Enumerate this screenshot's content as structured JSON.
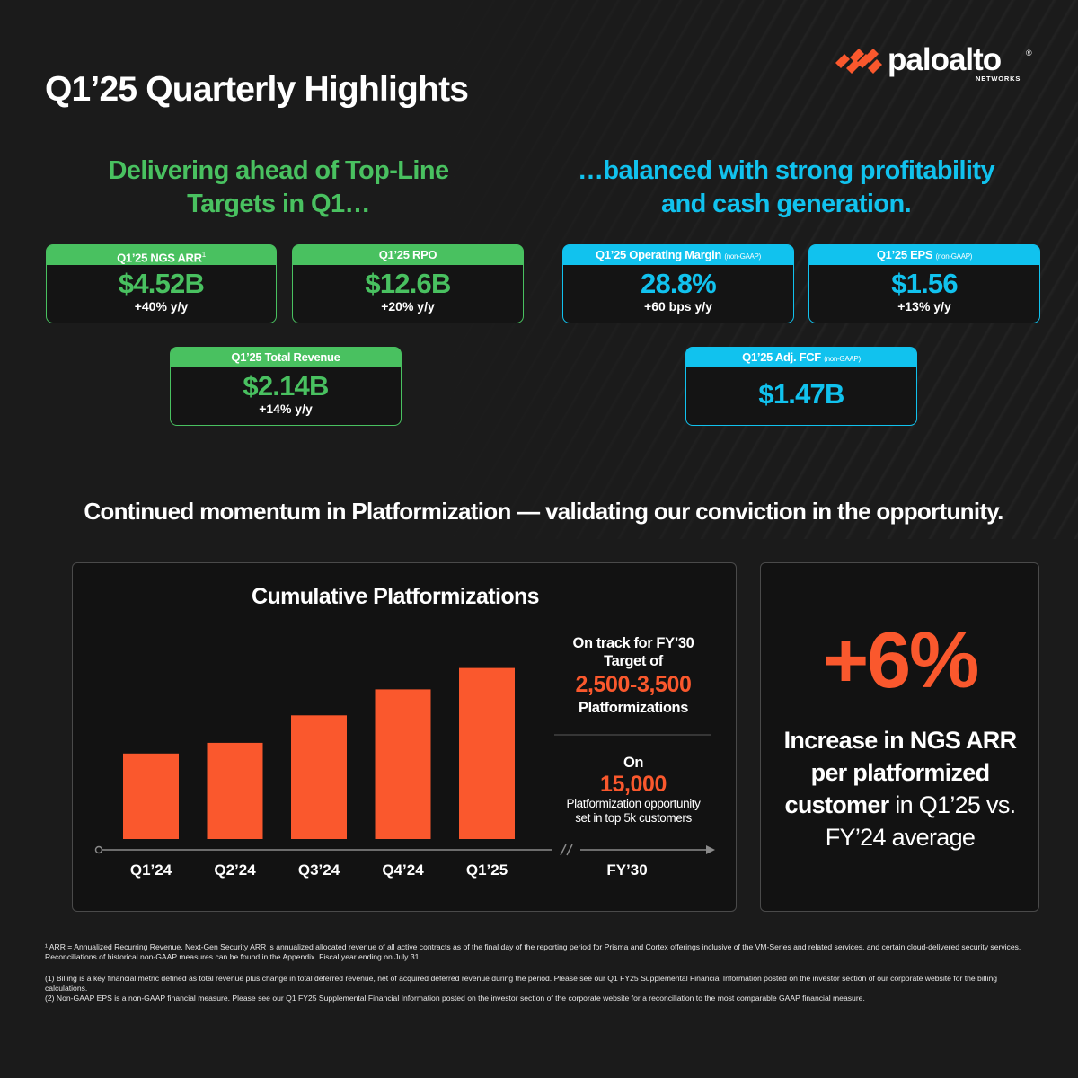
{
  "title": "Q1’25 Quarterly Highlights",
  "brand": {
    "word": "paloalto",
    "reg": "®",
    "sub": "NETWORKS",
    "color": "#fa582d"
  },
  "left_heading": "Delivering ahead of Top-Line Targets in Q1…",
  "right_heading": "…balanced with strong profitability and cash generation.",
  "cards": {
    "ngs_arr": {
      "label": "Q1’25 NGS ARR",
      "sup": "1",
      "value": "$4.52B",
      "change": "+40% y/y"
    },
    "rpo": {
      "label": "Q1’25 RPO",
      "value": "$12.6B",
      "change": "+20% y/y"
    },
    "revenue": {
      "label": "Q1’25 Total Revenue",
      "value": "$2.14B",
      "change": "+14% y/y"
    },
    "op_margin": {
      "label": "Q1’25 Operating Margin",
      "tag": "(non-GAAP)",
      "value": "28.8%",
      "change": "+60 bps y/y"
    },
    "eps": {
      "label": "Q1’25 EPS",
      "tag": "(non-GAAP)",
      "value": "$1.56",
      "change": "+13% y/y"
    },
    "fcf": {
      "label": "Q1’25 Adj. FCF",
      "tag": "(non-GAAP)",
      "value": "$1.47B"
    }
  },
  "colors": {
    "green": "#49c160",
    "blue": "#11c2ee",
    "orange": "#fa582d"
  },
  "subheading": "Continued momentum in Platformization — validating our conviction in the opportunity.",
  "chart_data": {
    "type": "bar",
    "title": "Cumulative Platformizations",
    "categories": [
      "Q1’24",
      "Q2’24",
      "Q3’24",
      "Q4’24",
      "Q1’25"
    ],
    "values": [
      0.56,
      0.63,
      0.81,
      0.98,
      1.12
    ],
    "value_scale": "relative (no axis values printed)",
    "extra_category": "FY’30",
    "color": "#fa582d",
    "grid": false
  },
  "target_note": {
    "line1": "On track for FY’30",
    "line2": "Target of",
    "range": "2,500-3,500",
    "line3": "Platformizations"
  },
  "opportunity_note": {
    "line1": "On",
    "value": "15,000",
    "line2": "Platformization opportunity",
    "line3": "set in top 5k customers"
  },
  "increase": {
    "value": "+6%",
    "bold1": "Increase in NGS ARR",
    "bold2": "per platformized",
    "bold3": "customer",
    "rest3": " in Q1’25 vs.",
    "line4": "FY’24 average"
  },
  "footnotes": [
    "¹ ARR = Annualized Recurring Revenue. Next-Gen Security ARR is annualized allocated revenue of all active contracts as of the final day of the reporting period for Prisma and Cortex offerings inclusive of the VM-Series and related services, and certain cloud-delivered security services. Reconciliations of historical non-GAAP measures can be found in the Appendix. Fiscal year ending on July 31.",
    "(1) Billing is a key financial metric defined as total revenue plus change in total deferred revenue, net of acquired deferred revenue during the period. Please see our Q1 FY25 Supplemental Financial Information posted on the investor section of our corporate website for the billing calculations.",
    "(2) Non-GAAP EPS is a non-GAAP financial measure. Please see our Q1 FY25 Supplemental Financial Information posted on the investor section of the corporate website for a reconciliation to the most comparable GAAP financial measure."
  ]
}
